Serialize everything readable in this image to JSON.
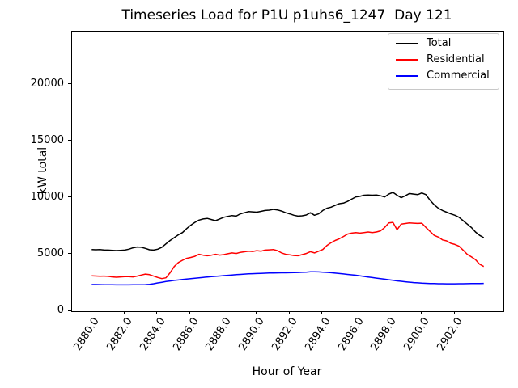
{
  "window": {
    "title": "Timeseries Load for P1U p1uhs6_1247  Day 121"
  },
  "chart_data": {
    "type": "line",
    "title": "Timeseries Load for P1U p1uhs6_1247  Day 121",
    "xlabel": "Hour of Year",
    "ylabel": "kW total",
    "grid": false,
    "xlim": [
      2878.81,
      2904.94
    ],
    "ylim": [
      0,
      24714
    ],
    "x_ticks": [
      2880,
      2882,
      2884,
      2886,
      2888,
      2890,
      2892,
      2894,
      2896,
      2898,
      2900,
      2902
    ],
    "x_tick_labels": [
      "2880.0",
      "2882.0",
      "2884.0",
      "2886.0",
      "2888.0",
      "2890.0",
      "2892.0",
      "2894.0",
      "2896.0",
      "2898.0",
      "2900.0",
      "2902.0"
    ],
    "y_ticks": [
      0,
      5000,
      10000,
      15000,
      20000
    ],
    "y_tick_labels": [
      "0",
      "5000",
      "10000",
      "15000",
      "20000"
    ],
    "x_start": 2880.0,
    "x_step": 0.25,
    "legend": {
      "position": "upper right",
      "entries": [
        "Total",
        "Residential",
        "Commercial"
      ]
    },
    "series": [
      {
        "name": "Total",
        "color": "#000000",
        "values": [
          5450,
          5430,
          5440,
          5410,
          5400,
          5380,
          5360,
          5380,
          5400,
          5480,
          5600,
          5670,
          5650,
          5550,
          5430,
          5400,
          5480,
          5650,
          5950,
          6250,
          6500,
          6750,
          6950,
          7300,
          7600,
          7850,
          8050,
          8150,
          8200,
          8100,
          8000,
          8150,
          8300,
          8380,
          8450,
          8400,
          8600,
          8700,
          8800,
          8780,
          8750,
          8820,
          8900,
          8930,
          9000,
          8950,
          8850,
          8700,
          8600,
          8480,
          8400,
          8430,
          8500,
          8700,
          8480,
          8600,
          8900,
          9100,
          9190,
          9350,
          9500,
          9550,
          9700,
          9900,
          10100,
          10150,
          10250,
          10270,
          10250,
          10270,
          10200,
          10100,
          10350,
          10500,
          10250,
          10030,
          10200,
          10400,
          10350,
          10300,
          10450,
          10300,
          9800,
          9400,
          9100,
          8900,
          8750,
          8600,
          8480,
          8300,
          8000,
          7700,
          7400,
          7000,
          6700,
          6500
        ]
      },
      {
        "name": "Residential",
        "color": "#ff0000",
        "values": [
          3120,
          3110,
          3090,
          3100,
          3080,
          3030,
          3000,
          3030,
          3060,
          3050,
          3030,
          3100,
          3190,
          3280,
          3230,
          3100,
          2980,
          2880,
          2950,
          3400,
          3950,
          4300,
          4500,
          4670,
          4750,
          4850,
          5030,
          4950,
          4900,
          4950,
          5030,
          4960,
          5000,
          5080,
          5150,
          5100,
          5200,
          5250,
          5300,
          5280,
          5350,
          5300,
          5400,
          5420,
          5450,
          5350,
          5150,
          5030,
          4980,
          4920,
          4900,
          5000,
          5100,
          5260,
          5150,
          5300,
          5450,
          5800,
          6050,
          6250,
          6400,
          6600,
          6815,
          6900,
          6950,
          6900,
          6950,
          7000,
          6950,
          7000,
          7100,
          7400,
          7800,
          7850,
          7200,
          7700,
          7750,
          7800,
          7780,
          7760,
          7780,
          7400,
          7050,
          6700,
          6550,
          6300,
          6215,
          6000,
          5900,
          5743,
          5400,
          5029,
          4800,
          4550,
          4150,
          3950
        ]
      },
      {
        "name": "Commercial",
        "color": "#0000ff",
        "values": [
          2360,
          2355,
          2350,
          2345,
          2340,
          2335,
          2330,
          2330,
          2330,
          2332,
          2335,
          2338,
          2340,
          2350,
          2380,
          2430,
          2500,
          2560,
          2620,
          2670,
          2720,
          2760,
          2800,
          2835,
          2870,
          2910,
          2950,
          2985,
          3020,
          3050,
          3080,
          3110,
          3140,
          3170,
          3200,
          3225,
          3250,
          3275,
          3300,
          3315,
          3330,
          3345,
          3360,
          3370,
          3380,
          3385,
          3390,
          3395,
          3400,
          3410,
          3420,
          3435,
          3450,
          3480,
          3480,
          3470,
          3450,
          3425,
          3400,
          3365,
          3330,
          3290,
          3250,
          3215,
          3180,
          3125,
          3070,
          3020,
          2970,
          2920,
          2870,
          2825,
          2780,
          2730,
          2680,
          2640,
          2600,
          2565,
          2530,
          2505,
          2480,
          2465,
          2450,
          2440,
          2430,
          2425,
          2420,
          2420,
          2420,
          2425,
          2430,
          2435,
          2440,
          2445,
          2450,
          2460
        ]
      }
    ]
  }
}
